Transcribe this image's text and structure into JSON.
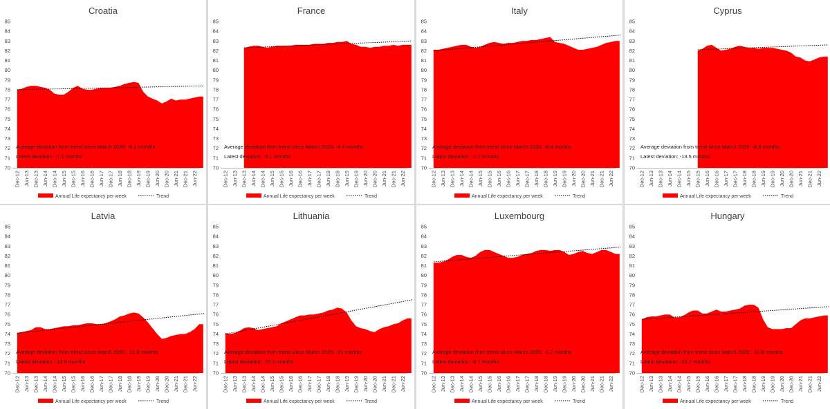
{
  "page": {
    "y_tick_labels": [
      "70",
      "71",
      "72",
      "73",
      "74",
      "75",
      "76",
      "77",
      "78",
      "79",
      "80",
      "81",
      "82",
      "83",
      "84",
      "85"
    ]
  },
  "colors": {
    "area": "#ff0000",
    "trend": "#000000",
    "text": "#404040",
    "axis": "#bfbfbf"
  },
  "chart_data": [
    {
      "type": "area",
      "title": "Croatia",
      "ylim": [
        70,
        85
      ],
      "x_tick_labels": [
        "Dec-12",
        "Jun-13",
        "Dec-13",
        "Jun-14",
        "Dec-14",
        "Jun-15",
        "Dec-15",
        "Jun-16",
        "Dec-16",
        "Jun-17",
        "Dec-17",
        "Jun-18",
        "Dec-18",
        "Jun-19",
        "Dec-19",
        "Jun-20",
        "Dec-20",
        "Jun-21",
        "Dec-21",
        "Jun-22"
      ],
      "series": [
        {
          "name": "Annual Life expectancy per week",
          "x": [
            0,
            0.5,
            1,
            1.5,
            2,
            2.5,
            3,
            3.5,
            4,
            4.5,
            5,
            5.5,
            6,
            6.5,
            7,
            7.5,
            8,
            8.5,
            9,
            9.5,
            10,
            10.5,
            11,
            11.5,
            12,
            12.5,
            13,
            13.5,
            14,
            14.5,
            15,
            15.5,
            16,
            16.5,
            17,
            17.5,
            18,
            18.5,
            19,
            19.5
          ],
          "values": [
            78.0,
            78.1,
            78.3,
            78.4,
            78.4,
            78.3,
            78.2,
            78.0,
            77.6,
            77.5,
            77.5,
            77.8,
            78.2,
            78.4,
            78.1,
            78.0,
            78.0,
            78.1,
            78.2,
            78.2,
            78.2,
            78.3,
            78.4,
            78.6,
            78.7,
            78.8,
            78.7,
            77.8,
            77.3,
            77.1,
            76.9,
            76.6,
            76.8,
            77.1,
            76.9,
            77.0,
            77.0,
            77.1,
            77.2,
            77.3
          ]
        },
        {
          "name": "Trend",
          "x": [
            0,
            19.5
          ],
          "values": [
            78.0,
            78.4
          ]
        }
      ],
      "annotations": [
        "Average deviation from trend since March 2020: -8.1 months",
        "Latest deviation: -7.1 months"
      ]
    },
    {
      "type": "area",
      "title": "France",
      "ylim": [
        70,
        85
      ],
      "x_tick_labels": [
        "Dec-12",
        "Jun-13",
        "Dec-13",
        "Jun-14",
        "Dec-14",
        "Jun-15",
        "Dec-15",
        "Jun-16",
        "Dec-16",
        "Jun-17",
        "Dec-17",
        "Jun-18",
        "Dec-18",
        "Jun-19",
        "Dec-19",
        "Jun-20",
        "Dec-20",
        "Jun-21",
        "Dec-21",
        "Jun-22"
      ],
      "series": [
        {
          "name": "Annual Life expectancy per week",
          "x": [
            2,
            2.5,
            3,
            3.5,
            4,
            4.5,
            5,
            5.5,
            6,
            6.5,
            7,
            7.5,
            8,
            8.5,
            9,
            9.5,
            10,
            10.5,
            11,
            11.5,
            12,
            12.5,
            13,
            13.5,
            14,
            14.5,
            15,
            15.5,
            16,
            16.5,
            17,
            17.5,
            18,
            18.5,
            19,
            19.5
          ],
          "values": [
            82.3,
            82.4,
            82.5,
            82.5,
            82.4,
            82.3,
            82.4,
            82.5,
            82.5,
            82.5,
            82.5,
            82.6,
            82.6,
            82.6,
            82.6,
            82.7,
            82.7,
            82.7,
            82.8,
            82.8,
            82.9,
            82.9,
            83.0,
            82.7,
            82.6,
            82.4,
            82.4,
            82.3,
            82.4,
            82.4,
            82.5,
            82.5,
            82.6,
            82.5,
            82.6,
            82.6
          ]
        },
        {
          "name": "Trend",
          "x": [
            2,
            19.5
          ],
          "values": [
            82.3,
            83.0
          ]
        }
      ],
      "annotations": [
        "Average deviation from trend since March 2020: -4.4 months",
        "Latest deviation: -5.1 months"
      ]
    },
    {
      "type": "area",
      "title": "Italy",
      "ylim": [
        70,
        85
      ],
      "x_tick_labels": [
        "Dec-12",
        "Jun-13",
        "Dec-13",
        "Jun-14",
        "Dec-14",
        "Jun-15",
        "Dec-15",
        "Jun-16",
        "Dec-16",
        "Jun-17",
        "Dec-17",
        "Jun-18",
        "Dec-18",
        "Jun-19",
        "Dec-19",
        "Jun-20",
        "Dec-20",
        "Jun-21",
        "Dec-21",
        "Jun-22"
      ],
      "series": [
        {
          "name": "Annual Life expectancy per week",
          "x": [
            0,
            0.5,
            1,
            1.5,
            2,
            2.5,
            3,
            3.5,
            4,
            4.5,
            5,
            5.5,
            6,
            6.5,
            7,
            7.5,
            8,
            8.5,
            9,
            9.5,
            10,
            10.5,
            11,
            11.5,
            12,
            12.5,
            13,
            13.5,
            14,
            14.5,
            15,
            15.5,
            16,
            16.5,
            17,
            17.5,
            18,
            18.5,
            19,
            19.5
          ],
          "values": [
            82.1,
            82.1,
            82.2,
            82.3,
            82.4,
            82.5,
            82.6,
            82.6,
            82.4,
            82.3,
            82.4,
            82.6,
            82.8,
            82.9,
            82.8,
            82.7,
            82.8,
            82.8,
            82.9,
            83.0,
            83.0,
            83.1,
            83.1,
            83.2,
            83.3,
            83.4,
            82.9,
            82.8,
            82.7,
            82.5,
            82.3,
            82.1,
            82.1,
            82.2,
            82.3,
            82.4,
            82.6,
            82.8,
            82.9,
            83.0
          ]
        },
        {
          "name": "Trend",
          "x": [
            0,
            19.5
          ],
          "values": [
            82.0,
            83.6
          ]
        }
      ],
      "annotations": [
        "Average deviation from trend since March 2020: -8.8 months",
        "Latest deviation: -7.2 months"
      ]
    },
    {
      "type": "area",
      "title": "Cyprus",
      "ylim": [
        70,
        85
      ],
      "x_tick_labels": [
        "Dec-12",
        "Jun-13",
        "Dec-13",
        "Jun-14",
        "Dec-14",
        "Jun-15",
        "Dec-15",
        "Jun-16",
        "Dec-16",
        "Jun-17",
        "Dec-17",
        "Jun-18",
        "Dec-18",
        "Jun-19",
        "Dec-19",
        "Jun-20",
        "Dec-20",
        "Jun-21",
        "Dec-21",
        "Jun-22"
      ],
      "series": [
        {
          "name": "Annual Life expectancy per week",
          "x": [
            6,
            6.5,
            7,
            7.5,
            8,
            8.5,
            9,
            9.5,
            10,
            10.5,
            11,
            11.5,
            12,
            12.5,
            13,
            13.5,
            14,
            14.5,
            15,
            15.5,
            16,
            16.5,
            17,
            17.5,
            18,
            18.5,
            19,
            19.5
          ],
          "values": [
            82.0,
            82.2,
            82.5,
            82.6,
            82.3,
            82.0,
            82.1,
            82.2,
            82.4,
            82.5,
            82.4,
            82.3,
            82.3,
            82.2,
            82.3,
            82.3,
            82.3,
            82.2,
            82.1,
            82.0,
            81.8,
            81.4,
            81.3,
            81.0,
            80.9,
            81.1,
            81.3,
            81.4
          ]
        },
        {
          "name": "Trend",
          "x": [
            6,
            19.5
          ],
          "values": [
            82.1,
            82.6
          ]
        }
      ],
      "annotations": [
        "Average deviation from trend since March 2020: -8.8 months",
        "Latest deviation: -13.5 months"
      ]
    },
    {
      "type": "area",
      "title": "Latvia",
      "ylim": [
        70,
        85
      ],
      "x_tick_labels": [
        "Dec-12",
        "Jun-13",
        "Dec-13",
        "Jun-14",
        "Dec-14",
        "Jun-15",
        "Dec-15",
        "Jun-16",
        "Dec-16",
        "Jun-17",
        "Dec-17",
        "Jun-18",
        "Dec-18",
        "Jun-19",
        "Dec-19",
        "Jun-20",
        "Dec-20",
        "Jun-21",
        "Dec-21",
        "Jun-22"
      ],
      "series": [
        {
          "name": "Annual Life expectancy per week",
          "x": [
            0,
            0.5,
            1,
            1.5,
            2,
            2.5,
            3,
            3.5,
            4,
            4.5,
            5,
            5.5,
            6,
            6.5,
            7,
            7.5,
            8,
            8.5,
            9,
            9.5,
            10,
            10.5,
            11,
            11.5,
            12,
            12.5,
            13,
            13.5,
            14,
            14.5,
            15,
            15.5,
            16,
            16.5,
            17,
            17.5,
            18,
            18.5,
            19,
            19.5
          ],
          "values": [
            74.1,
            74.2,
            74.3,
            74.4,
            74.7,
            74.7,
            74.5,
            74.5,
            74.6,
            74.7,
            74.8,
            74.8,
            74.9,
            74.9,
            75.0,
            75.1,
            75.1,
            75.0,
            75.0,
            75.1,
            75.3,
            75.5,
            75.8,
            75.9,
            76.1,
            76.2,
            76.1,
            75.7,
            75.2,
            74.6,
            74.0,
            73.5,
            73.6,
            73.8,
            73.9,
            74.0,
            74.0,
            74.2,
            74.5,
            75.0
          ]
        },
        {
          "name": "Trend",
          "x": [
            0,
            19.5
          ],
          "values": [
            74.1,
            76.1
          ]
        }
      ],
      "annotations": [
        "Average deviation from trend since March 2020: -12.8 months",
        "Latest deviation: -13.9 months"
      ]
    },
    {
      "type": "area",
      "title": "Lithuania",
      "ylim": [
        70,
        85
      ],
      "x_tick_labels": [
        "Dec-12",
        "Jun-13",
        "Dec-13",
        "Jun-14",
        "Dec-14",
        "Jun-15",
        "Dec-15",
        "Jun-16",
        "Dec-16",
        "Jun-17",
        "Dec-17",
        "Jun-18",
        "Dec-18",
        "Jun-19",
        "Dec-19",
        "Jun-20",
        "Dec-20",
        "Jun-21",
        "Dec-21",
        "Jun-22"
      ],
      "series": [
        {
          "name": "Annual Life expectancy per week",
          "x": [
            0,
            0.5,
            1,
            1.5,
            2,
            2.5,
            3,
            3.5,
            4,
            4.5,
            5,
            5.5,
            6,
            6.5,
            7,
            7.5,
            8,
            8.5,
            9,
            9.5,
            10,
            10.5,
            11,
            11.5,
            12,
            12.5,
            13,
            13.5,
            14,
            14.5,
            15,
            15.5,
            16,
            16.5,
            17,
            17.5,
            18,
            18.5,
            19,
            19.5
          ],
          "values": [
            74.1,
            74.0,
            74.1,
            74.3,
            74.6,
            74.7,
            74.6,
            74.4,
            74.5,
            74.6,
            74.7,
            74.8,
            75.1,
            75.3,
            75.5,
            75.7,
            75.9,
            75.9,
            76.0,
            76.0,
            76.1,
            76.2,
            76.4,
            76.5,
            76.7,
            76.6,
            76.2,
            75.4,
            74.8,
            74.6,
            74.5,
            74.3,
            74.2,
            74.5,
            74.7,
            74.8,
            75.0,
            75.1,
            75.4,
            75.6
          ]
        },
        {
          "name": "Trend",
          "x": [
            0,
            19.5
          ],
          "values": [
            74.0,
            77.5
          ]
        }
      ],
      "annotations": [
        "Average deviation from trend since March 2020: -21 months",
        "Latest deviation: -22.1 months"
      ]
    },
    {
      "type": "area",
      "title": "Luxembourg",
      "ylim": [
        70,
        85
      ],
      "x_tick_labels": [
        "Dec-12",
        "Jun-13",
        "Dec-13",
        "Jun-14",
        "Dec-14",
        "Jun-15",
        "Dec-15",
        "Jun-16",
        "Dec-16",
        "Jun-17",
        "Dec-17",
        "Jun-18",
        "Dec-18",
        "Jun-19",
        "Dec-19",
        "Jun-20",
        "Dec-20",
        "Jun-21",
        "Dec-21",
        "Jun-22"
      ],
      "series": [
        {
          "name": "Annual Life expectancy per week",
          "x": [
            0,
            0.5,
            1,
            1.5,
            2,
            2.5,
            3,
            3.5,
            4,
            4.5,
            5,
            5.5,
            6,
            6.5,
            7,
            7.5,
            8,
            8.5,
            9,
            9.5,
            10,
            10.5,
            11,
            11.5,
            12,
            12.5,
            13,
            13.5,
            14,
            14.5,
            15,
            15.5,
            16,
            16.5,
            17,
            17.5,
            18,
            18.5,
            19,
            19.5
          ],
          "values": [
            81.3,
            81.3,
            81.4,
            81.6,
            81.9,
            82.1,
            82.1,
            81.9,
            81.8,
            82.0,
            82.4,
            82.6,
            82.6,
            82.4,
            82.2,
            82.0,
            81.8,
            81.8,
            81.9,
            82.1,
            82.2,
            82.3,
            82.5,
            82.6,
            82.6,
            82.5,
            82.6,
            82.6,
            82.4,
            82.1,
            82.2,
            82.4,
            82.5,
            82.3,
            82.2,
            82.4,
            82.6,
            82.6,
            82.4,
            82.2
          ]
        },
        {
          "name": "Trend",
          "x": [
            0,
            19.5
          ],
          "values": [
            81.4,
            82.9
          ]
        }
      ],
      "annotations": [
        "Average deviation from trend since March 2020: -3.7 months",
        "Latest deviation: -8.7 months"
      ]
    },
    {
      "type": "area",
      "title": "Hungary",
      "ylim": [
        70,
        85
      ],
      "x_tick_labels": [
        "Dec-12",
        "Jun-13",
        "Dec-13",
        "Jun-14",
        "Dec-14",
        "Jun-15",
        "Dec-15",
        "Jun-16",
        "Dec-16",
        "Jun-17",
        "Dec-17",
        "Jun-18",
        "Dec-18",
        "Jun-19",
        "Dec-19",
        "Jun-20",
        "Dec-20",
        "Jun-21",
        "Dec-21",
        "Jun-22"
      ],
      "series": [
        {
          "name": "Annual Life expectancy per week",
          "x": [
            0,
            0.5,
            1,
            1.5,
            2,
            2.5,
            3,
            3.5,
            4,
            4.5,
            5,
            5.5,
            6,
            6.5,
            7,
            7.5,
            8,
            8.5,
            9,
            9.5,
            10,
            10.5,
            11,
            11.5,
            12,
            12.5,
            13,
            13.5,
            14,
            14.5,
            15,
            15.5,
            16,
            16.5,
            17,
            17.5,
            18,
            18.5,
            19,
            19.5
          ],
          "values": [
            75.5,
            75.7,
            75.8,
            75.8,
            75.9,
            76.0,
            76.0,
            75.7,
            75.7,
            75.9,
            76.2,
            76.4,
            76.4,
            76.1,
            76.1,
            76.3,
            76.5,
            76.3,
            76.3,
            76.4,
            76.5,
            76.6,
            76.9,
            77.0,
            77.0,
            76.7,
            75.5,
            74.7,
            74.5,
            74.5,
            74.5,
            74.6,
            74.6,
            75.0,
            75.4,
            75.6,
            75.6,
            75.7,
            75.8,
            75.9
          ]
        },
        {
          "name": "Trend",
          "x": [
            0,
            19.5
          ],
          "values": [
            75.5,
            76.8
          ]
        }
      ],
      "annotations": [
        "Average deviation from trend since March 2020: -12.8 months",
        "Latest deviation: -10.7 months"
      ]
    }
  ]
}
